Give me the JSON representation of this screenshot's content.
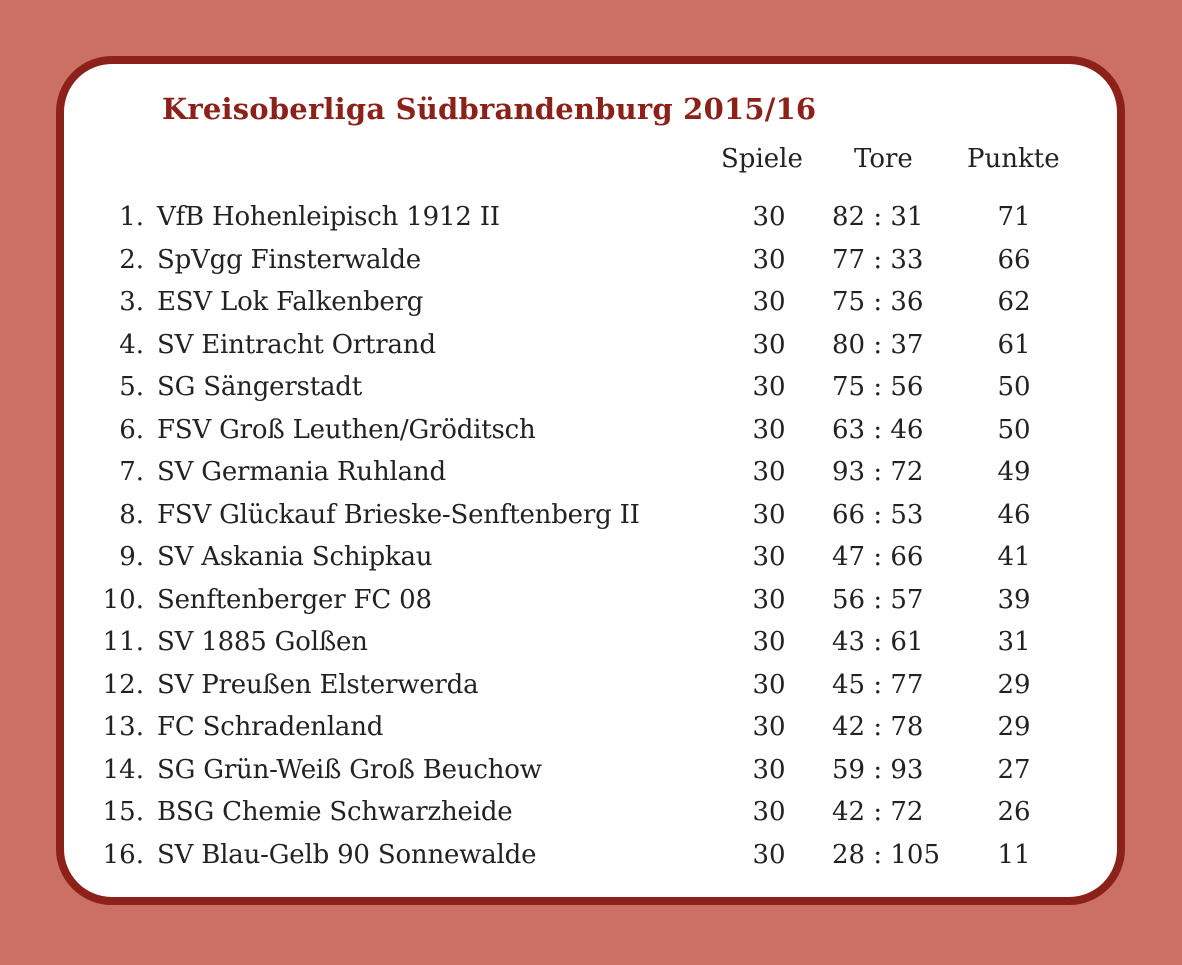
{
  "title": "Kreisoberliga Südbrandenburg 2015/16",
  "headers": {
    "games": "Spiele",
    "goals": "Tore",
    "points": "Punkte"
  },
  "colors": {
    "background": "#cc6f64",
    "border": "#8b2119",
    "title": "#8b2119"
  },
  "rows": [
    {
      "rank": "1.",
      "team": "VfB Hohenleipisch 1912 II",
      "games": "30",
      "goals": "82 : 31",
      "points": "71"
    },
    {
      "rank": "2.",
      "team": "SpVgg Finsterwalde",
      "games": "30",
      "goals": "77 : 33",
      "points": "66"
    },
    {
      "rank": "3.",
      "team": "ESV Lok Falkenberg",
      "games": "30",
      "goals": "75 : 36",
      "points": "62"
    },
    {
      "rank": "4.",
      "team": "SV Eintracht Ortrand",
      "games": "30",
      "goals": "80 : 37",
      "points": "61"
    },
    {
      "rank": "5.",
      "team": "SG Sängerstadt",
      "games": "30",
      "goals": "75 : 56",
      "points": "50"
    },
    {
      "rank": "6.",
      "team": "FSV Groß Leuthen/Gröditsch",
      "games": "30",
      "goals": "63 : 46",
      "points": "50"
    },
    {
      "rank": "7.",
      "team": "SV Germania Ruhland",
      "games": "30",
      "goals": "93 : 72",
      "points": "49"
    },
    {
      "rank": "8.",
      "team": "FSV Glückauf Brieske-Senftenberg II",
      "games": "30",
      "goals": "66 : 53",
      "points": "46"
    },
    {
      "rank": "9.",
      "team": "SV Askania Schipkau",
      "games": "30",
      "goals": "47 : 66",
      "points": "41"
    },
    {
      "rank": "10.",
      "team": "Senftenberger FC 08",
      "games": "30",
      "goals": "56 : 57",
      "points": "39"
    },
    {
      "rank": "11.",
      "team": "SV 1885 Golßen",
      "games": "30",
      "goals": "43 : 61",
      "points": "31"
    },
    {
      "rank": "12.",
      "team": "SV Preußen Elsterwerda",
      "games": "30",
      "goals": "45 : 77",
      "points": "29"
    },
    {
      "rank": "13.",
      "team": "FC Schradenland",
      "games": "30",
      "goals": "42 : 78",
      "points": "29"
    },
    {
      "rank": "14.",
      "team": "SG Grün-Weiß Groß Beuchow",
      "games": "30",
      "goals": "59 : 93",
      "points": "27"
    },
    {
      "rank": "15.",
      "team": "BSG Chemie Schwarzheide",
      "games": "30",
      "goals": "42 : 72",
      "points": "26"
    },
    {
      "rank": "16.",
      "team": "SV Blau-Gelb 90 Sonnewalde",
      "games": "30",
      "goals": "28 : 105",
      "points": "11"
    }
  ]
}
